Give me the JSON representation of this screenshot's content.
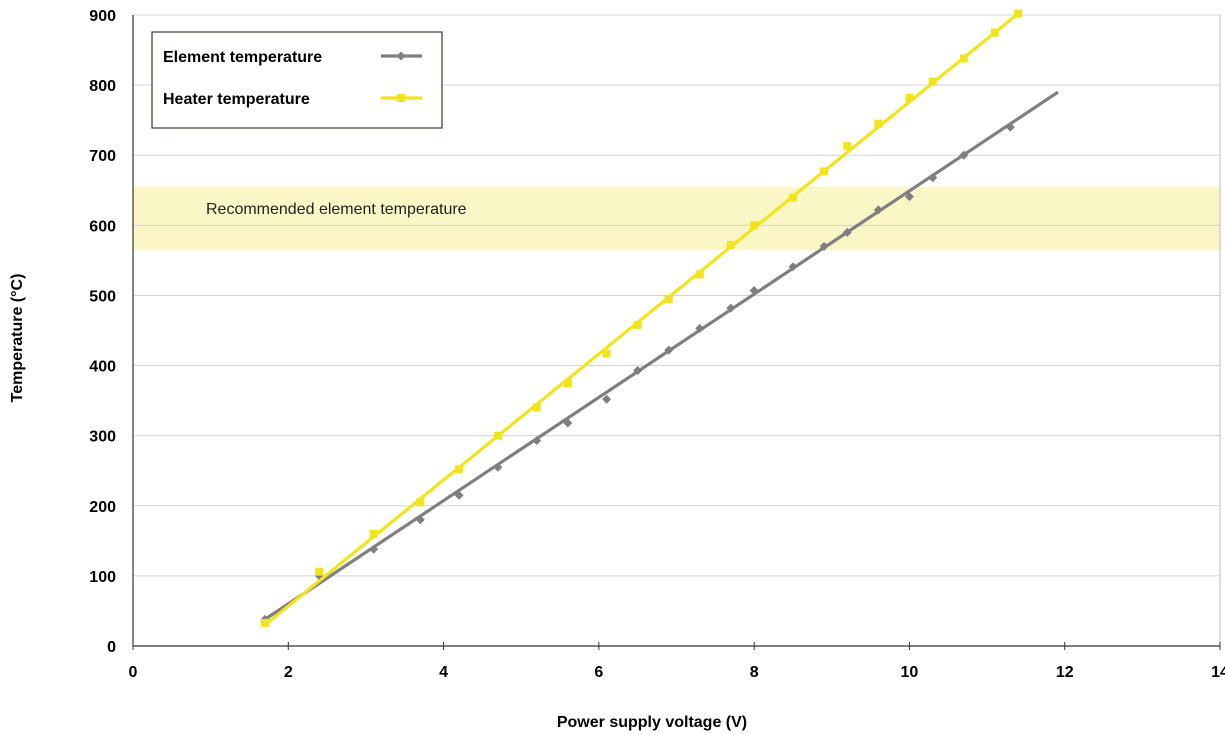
{
  "chart_data": {
    "type": "line",
    "title": "",
    "xlabel": "Power supply voltage (V)",
    "ylabel": "Temperature (°C)",
    "xlim": [
      0,
      14
    ],
    "ylim": [
      0,
      900
    ],
    "x_ticks": [
      "0",
      "2",
      "4",
      "6",
      "8",
      "10",
      "12",
      "14"
    ],
    "y_ticks": [
      "0",
      "100",
      "200",
      "300",
      "400",
      "500",
      "600",
      "700",
      "800",
      "900"
    ],
    "grid": "horizontal",
    "legend_position": "top-left",
    "band": {
      "label": "Recommended element temperature",
      "range": [
        565,
        655
      ],
      "color": "#fbf6c6"
    },
    "series": [
      {
        "name": "Element temperature",
        "color": "#7f7f7f",
        "marker": "diamond",
        "points": [
          [
            1.7,
            38
          ],
          [
            2.4,
            100
          ],
          [
            3.1,
            138
          ],
          [
            3.7,
            180
          ],
          [
            4.2,
            215
          ],
          [
            4.7,
            255
          ],
          [
            5.2,
            293
          ],
          [
            5.6,
            318
          ],
          [
            6.1,
            352
          ],
          [
            6.5,
            393
          ],
          [
            6.9,
            422
          ],
          [
            7.3,
            453
          ],
          [
            7.7,
            482
          ],
          [
            8.0,
            507
          ],
          [
            8.5,
            541
          ],
          [
            8.9,
            570
          ],
          [
            9.2,
            590
          ],
          [
            9.6,
            622
          ],
          [
            10.0,
            641
          ],
          [
            10.3,
            668
          ],
          [
            10.7,
            700
          ],
          [
            11.3,
            740
          ]
        ],
        "fit": [
          [
            1.7,
            38
          ],
          [
            11.9,
            789
          ]
        ]
      },
      {
        "name": "Heater temperature",
        "color": "#f2e41a",
        "marker": "square",
        "points": [
          [
            1.7,
            33
          ],
          [
            2.4,
            106
          ],
          [
            3.1,
            160
          ],
          [
            3.7,
            205
          ],
          [
            4.2,
            252
          ],
          [
            4.7,
            300
          ],
          [
            5.2,
            340
          ],
          [
            5.6,
            375
          ],
          [
            6.1,
            417
          ],
          [
            6.5,
            458
          ],
          [
            6.9,
            495
          ],
          [
            7.3,
            530
          ],
          [
            7.7,
            572
          ],
          [
            8.0,
            600
          ],
          [
            8.5,
            640
          ],
          [
            8.9,
            677
          ],
          [
            9.2,
            713
          ],
          [
            9.6,
            745
          ],
          [
            10.0,
            782
          ],
          [
            10.3,
            805
          ],
          [
            10.7,
            838
          ],
          [
            11.1,
            875
          ],
          [
            11.4,
            902
          ]
        ],
        "fit": [
          [
            1.7,
            30
          ],
          [
            11.4,
            902
          ]
        ]
      }
    ]
  }
}
